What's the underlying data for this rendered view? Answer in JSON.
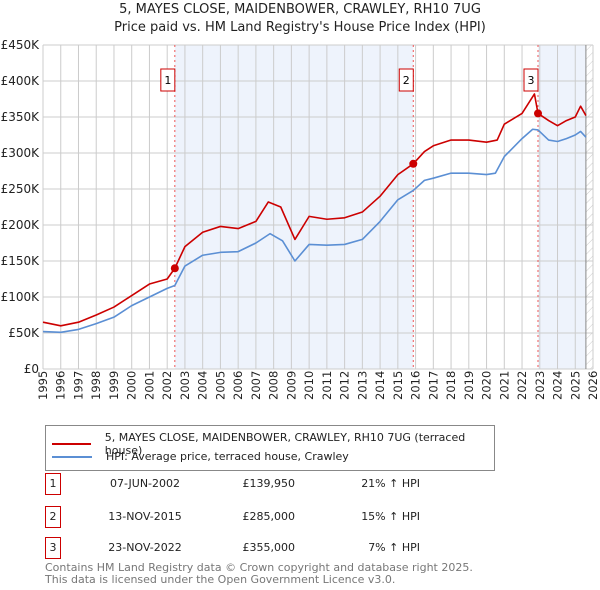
{
  "chart_data": {
    "type": "line",
    "title": "5, MAYES CLOSE, MAIDENBOWER, CRAWLEY, RH10 7UG",
    "subtitle": "Price paid vs. HM Land Registry's House Price Index (HPI)",
    "xlim": [
      1995,
      2026
    ],
    "ylim": [
      0,
      450000
    ],
    "grid": true,
    "y_ticks": [
      {
        "v": 0,
        "label": "£0"
      },
      {
        "v": 50000,
        "label": "£50K"
      },
      {
        "v": 100000,
        "label": "£100K"
      },
      {
        "v": 150000,
        "label": "£150K"
      },
      {
        "v": 200000,
        "label": "£200K"
      },
      {
        "v": 250000,
        "label": "£250K"
      },
      {
        "v": 300000,
        "label": "£300K"
      },
      {
        "v": 350000,
        "label": "£350K"
      },
      {
        "v": 400000,
        "label": "£400K"
      },
      {
        "v": 450000,
        "label": "£450K"
      }
    ],
    "x_ticks": [
      "1995",
      "1996",
      "1997",
      "1998",
      "1999",
      "2000",
      "2001",
      "2002",
      "2003",
      "2004",
      "2005",
      "2006",
      "2007",
      "2008",
      "2009",
      "2010",
      "2011",
      "2012",
      "2013",
      "2014",
      "2015",
      "2016",
      "2017",
      "2018",
      "2019",
      "2020",
      "2021",
      "2022",
      "2023",
      "2024",
      "2025",
      "2026"
    ],
    "series": [
      {
        "name": "5, MAYES CLOSE, MAIDENBOWER, CRAWLEY, RH10 7UG (terraced house)",
        "color": "#cc0000",
        "x": [
          1995,
          1996,
          1997,
          1998,
          1999,
          2000,
          2001,
          2002,
          2002.43,
          2003,
          2004,
          2005,
          2006,
          2007,
          2007.7,
          2008.4,
          2009.2,
          2010,
          2011,
          2012,
          2013,
          2014,
          2015,
          2015.87,
          2016.5,
          2017,
          2018,
          2019,
          2020,
          2020.6,
          2021,
          2022,
          2022.7,
          2022.9,
          2023.5,
          2024,
          2024.5,
          2025,
          2025.3,
          2025.6
        ],
        "y": [
          65000,
          60000,
          65000,
          75000,
          86000,
          102000,
          118000,
          125000,
          139950,
          170000,
          190000,
          198000,
          195000,
          205000,
          232000,
          225000,
          180000,
          212000,
          208000,
          210000,
          218000,
          240000,
          270000,
          285000,
          302000,
          310000,
          318000,
          318000,
          315000,
          318000,
          340000,
          355000,
          382000,
          355000,
          345000,
          338000,
          345000,
          350000,
          365000,
          352000
        ]
      },
      {
        "name": "HPI: Average price, terraced house, Crawley",
        "color": "#5b8fd4",
        "x": [
          1995,
          1996,
          1997,
          1998,
          1999,
          2000,
          2001,
          2002,
          2002.43,
          2003,
          2004,
          2005,
          2006,
          2007,
          2007.8,
          2008.5,
          2009.2,
          2010,
          2011,
          2012,
          2013,
          2014,
          2015,
          2015.87,
          2016.5,
          2017,
          2018,
          2019,
          2020,
          2020.5,
          2021,
          2022,
          2022.6,
          2022.9,
          2023.5,
          2024,
          2024.5,
          2025,
          2025.3,
          2025.6
        ],
        "y": [
          52000,
          51000,
          55000,
          63000,
          72000,
          88000,
          100000,
          112000,
          116000,
          143000,
          158000,
          162000,
          163000,
          175000,
          188000,
          178000,
          150000,
          173000,
          172000,
          173000,
          180000,
          205000,
          235000,
          248000,
          262000,
          265000,
          272000,
          272000,
          270000,
          272000,
          295000,
          320000,
          333000,
          332000,
          318000,
          316000,
          320000,
          325000,
          330000,
          322000
        ]
      }
    ],
    "sales": [
      {
        "n": "1",
        "x": 2002.43,
        "y": 139950,
        "date": "07-JUN-2002",
        "price": "£139,950",
        "hpi": "21% ↑ HPI"
      },
      {
        "n": "2",
        "x": 2015.87,
        "y": 285000,
        "date": "13-NOV-2015",
        "price": "£285,000",
        "hpi": "15% ↑ HPI"
      },
      {
        "n": "3",
        "x": 2022.9,
        "y": 355000,
        "date": "23-NOV-2022",
        "price": "£355,000",
        "hpi": "7% ↑ HPI"
      }
    ],
    "hatch_from": 2025.6
  },
  "footer": [
    "Contains HM Land Registry data © Crown copyright and database right 2025.",
    "This data is licensed under the Open Government Licence v3.0."
  ]
}
